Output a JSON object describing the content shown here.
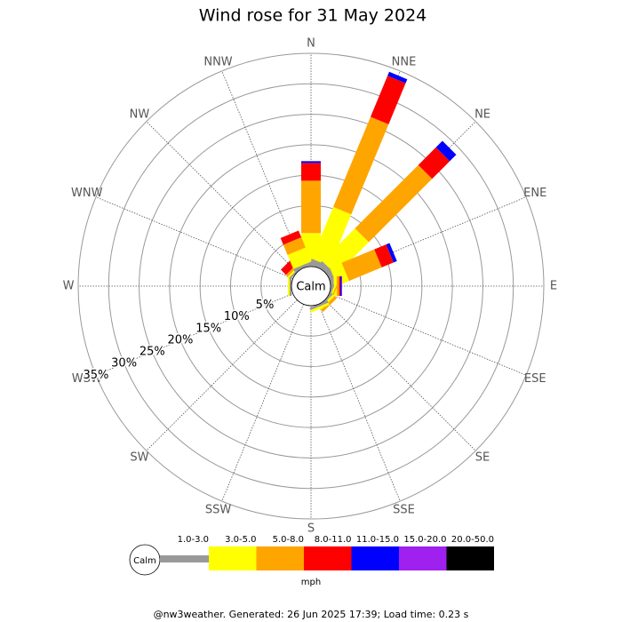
{
  "chart_data": {
    "type": "windrose",
    "title": "Wind rose for 31 May 2024",
    "directions": [
      "N",
      "NNE",
      "NE",
      "ENE",
      "E",
      "ESE",
      "SE",
      "SSE",
      "S",
      "SSW",
      "SW",
      "WSW",
      "W",
      "WNW",
      "NW",
      "NNW"
    ],
    "series": [
      {
        "name": "1.0-3.0",
        "color": "#999999",
        "values": [
          0.5,
          1.0,
          1.0,
          0.8,
          0.5,
          0.3,
          0.3,
          0.4,
          0,
          0,
          0,
          0,
          0.3,
          0,
          0.3,
          0.5
        ]
      },
      {
        "name": "3.0-5.0",
        "color": "#ffff00",
        "values": [
          5.0,
          9.2,
          7.6,
          2.1,
          0.5,
          0.3,
          0.4,
          0.4,
          0,
          0,
          0,
          0,
          0.3,
          0,
          0.3,
          2.5
        ]
      },
      {
        "name": "5.0-8.0",
        "color": "#ffa500",
        "values": [
          8.6,
          16.0,
          14.7,
          5.8,
          0.4,
          0.2,
          0.5,
          0,
          0,
          0,
          0,
          0,
          0,
          0,
          0.4,
          1.8
        ]
      },
      {
        "name": "8.0-11.0",
        "color": "#ff0000",
        "values": [
          2.9,
          7.3,
          4.1,
          2.1,
          0.2,
          0,
          0,
          0,
          0,
          0,
          0,
          0,
          0,
          0,
          1.2,
          1.2
        ]
      },
      {
        "name": "11.0-15.0",
        "color": "#0000ff",
        "values": [
          0.3,
          0.7,
          1.5,
          0.6,
          0.2,
          0,
          0,
          0,
          0,
          0,
          0,
          0,
          0,
          0,
          0,
          0
        ]
      },
      {
        "name": "15.0-20.0",
        "color": "#a020f0",
        "values": [
          0,
          0,
          0,
          0,
          0.1,
          0,
          0,
          0,
          0,
          0,
          0,
          0,
          0,
          0,
          0,
          0
        ]
      },
      {
        "name": "20.0-50.0",
        "color": "#000000",
        "values": [
          0,
          0,
          0,
          0,
          0,
          0,
          0,
          0,
          0,
          0,
          0,
          0,
          0,
          0,
          0,
          0
        ]
      }
    ],
    "rlim": [
      0,
      35
    ],
    "rticks": [
      {
        "value": 5,
        "label": "5%"
      },
      {
        "value": 10,
        "label": "10%"
      },
      {
        "value": 15,
        "label": "15%"
      },
      {
        "value": 20,
        "label": "20%"
      },
      {
        "value": 25,
        "label": "25%"
      },
      {
        "value": 30,
        "label": "30%"
      },
      {
        "value": 35,
        "label": "35%"
      }
    ],
    "calm_label": "Calm",
    "unit": "mph",
    "footer": "@nw3weather. Generated: 26 Jun 2025 17:39; Load time: 0.23 s"
  }
}
